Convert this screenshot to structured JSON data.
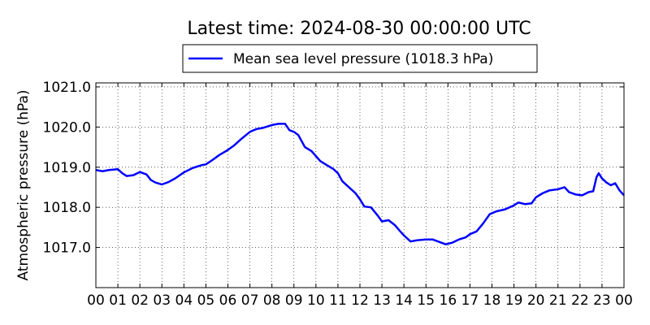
{
  "chart_data": {
    "type": "line",
    "title": "Latest time: 2024-08-30 00:00:00 UTC",
    "xlabel": "",
    "ylabel": "Atmospheric pressure (hPa)",
    "xlim": [
      0,
      24
    ],
    "ylim": [
      1016.0,
      1021.1
    ],
    "x_ticks": [
      {
        "value": 0,
        "label": "00"
      },
      {
        "value": 1,
        "label": "01"
      },
      {
        "value": 2,
        "label": "02"
      },
      {
        "value": 3,
        "label": "03"
      },
      {
        "value": 4,
        "label": "04"
      },
      {
        "value": 5,
        "label": "05"
      },
      {
        "value": 6,
        "label": "06"
      },
      {
        "value": 7,
        "label": "07"
      },
      {
        "value": 8,
        "label": "08"
      },
      {
        "value": 9,
        "label": "09"
      },
      {
        "value": 10,
        "label": "10"
      },
      {
        "value": 11,
        "label": "11"
      },
      {
        "value": 12,
        "label": "12"
      },
      {
        "value": 13,
        "label": "13"
      },
      {
        "value": 14,
        "label": "14"
      },
      {
        "value": 15,
        "label": "15"
      },
      {
        "value": 16,
        "label": "16"
      },
      {
        "value": 17,
        "label": "17"
      },
      {
        "value": 18,
        "label": "18"
      },
      {
        "value": 19,
        "label": "19"
      },
      {
        "value": 20,
        "label": "20"
      },
      {
        "value": 21,
        "label": "21"
      },
      {
        "value": 22,
        "label": "22"
      },
      {
        "value": 23,
        "label": "23"
      },
      {
        "value": 24,
        "label": "00"
      }
    ],
    "y_ticks": [
      {
        "value": 1017.0,
        "label": "1017.0"
      },
      {
        "value": 1018.0,
        "label": "1018.0"
      },
      {
        "value": 1019.0,
        "label": "1019.0"
      },
      {
        "value": 1020.0,
        "label": "1020.0"
      },
      {
        "value": 1021.0,
        "label": "1021.0"
      }
    ],
    "grid": true,
    "legend_position": "top-center",
    "series": [
      {
        "name": "Mean sea level pressure (1018.3 hPa)",
        "color": "#0000ff",
        "points": [
          [
            0.0,
            1018.93
          ],
          [
            0.3,
            1018.9
          ],
          [
            0.6,
            1018.93
          ],
          [
            1.0,
            1018.95
          ],
          [
            1.2,
            1018.85
          ],
          [
            1.4,
            1018.78
          ],
          [
            1.7,
            1018.8
          ],
          [
            2.0,
            1018.88
          ],
          [
            2.3,
            1018.82
          ],
          [
            2.5,
            1018.68
          ],
          [
            2.7,
            1018.62
          ],
          [
            3.0,
            1018.57
          ],
          [
            3.3,
            1018.63
          ],
          [
            3.6,
            1018.72
          ],
          [
            4.0,
            1018.87
          ],
          [
            4.4,
            1018.98
          ],
          [
            4.8,
            1019.05
          ],
          [
            5.0,
            1019.07
          ],
          [
            5.3,
            1019.18
          ],
          [
            5.6,
            1019.3
          ],
          [
            6.0,
            1019.43
          ],
          [
            6.3,
            1019.55
          ],
          [
            6.6,
            1019.7
          ],
          [
            7.0,
            1019.88
          ],
          [
            7.3,
            1019.95
          ],
          [
            7.6,
            1019.98
          ],
          [
            8.0,
            1020.05
          ],
          [
            8.3,
            1020.08
          ],
          [
            8.6,
            1020.08
          ],
          [
            8.8,
            1019.92
          ],
          [
            9.0,
            1019.88
          ],
          [
            9.2,
            1019.8
          ],
          [
            9.5,
            1019.5
          ],
          [
            9.8,
            1019.4
          ],
          [
            10.2,
            1019.15
          ],
          [
            10.5,
            1019.05
          ],
          [
            10.8,
            1018.95
          ],
          [
            11.0,
            1018.85
          ],
          [
            11.2,
            1018.65
          ],
          [
            11.5,
            1018.5
          ],
          [
            11.8,
            1018.35
          ],
          [
            12.0,
            1018.2
          ],
          [
            12.2,
            1018.02
          ],
          [
            12.5,
            1018.0
          ],
          [
            12.8,
            1017.8
          ],
          [
            13.0,
            1017.65
          ],
          [
            13.3,
            1017.68
          ],
          [
            13.6,
            1017.55
          ],
          [
            13.8,
            1017.42
          ],
          [
            14.0,
            1017.3
          ],
          [
            14.3,
            1017.15
          ],
          [
            14.6,
            1017.18
          ],
          [
            15.0,
            1017.2
          ],
          [
            15.3,
            1017.2
          ],
          [
            15.6,
            1017.14
          ],
          [
            15.9,
            1017.08
          ],
          [
            16.2,
            1017.12
          ],
          [
            16.5,
            1017.2
          ],
          [
            16.8,
            1017.25
          ],
          [
            17.0,
            1017.33
          ],
          [
            17.3,
            1017.4
          ],
          [
            17.6,
            1017.6
          ],
          [
            17.9,
            1017.83
          ],
          [
            18.2,
            1017.9
          ],
          [
            18.6,
            1017.95
          ],
          [
            19.0,
            1018.05
          ],
          [
            19.2,
            1018.12
          ],
          [
            19.5,
            1018.08
          ],
          [
            19.8,
            1018.1
          ],
          [
            20.0,
            1018.25
          ],
          [
            20.3,
            1018.35
          ],
          [
            20.6,
            1018.42
          ],
          [
            21.0,
            1018.45
          ],
          [
            21.3,
            1018.5
          ],
          [
            21.5,
            1018.38
          ],
          [
            21.8,
            1018.32
          ],
          [
            22.1,
            1018.3
          ],
          [
            22.4,
            1018.38
          ],
          [
            22.6,
            1018.4
          ],
          [
            22.75,
            1018.75
          ],
          [
            22.85,
            1018.85
          ],
          [
            23.0,
            1018.72
          ],
          [
            23.2,
            1018.62
          ],
          [
            23.4,
            1018.55
          ],
          [
            23.6,
            1018.6
          ],
          [
            23.8,
            1018.42
          ],
          [
            24.0,
            1018.3
          ]
        ]
      }
    ]
  }
}
